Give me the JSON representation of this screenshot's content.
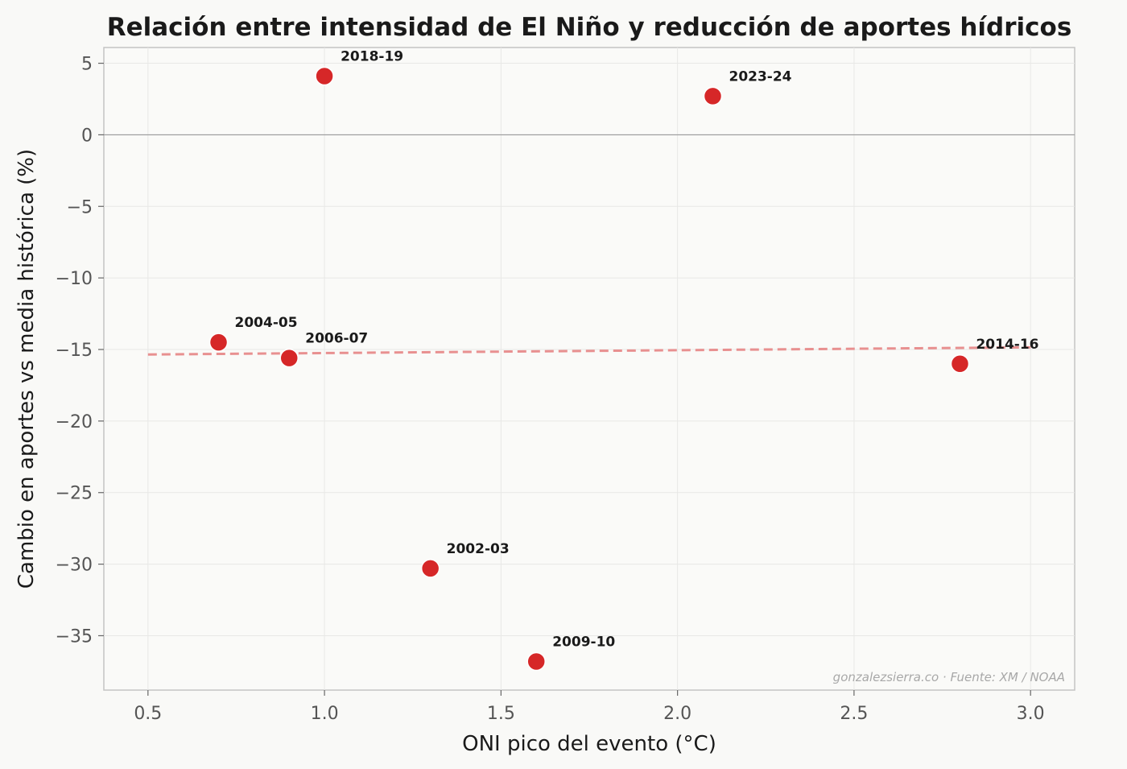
{
  "chart_data": {
    "type": "scatter",
    "title": "Relación entre intensidad de El Niño y reducción de aportes hídricos",
    "xlabel": "ONI pico del evento (°C)",
    "ylabel": "Cambio en aportes vs media histórica (%)",
    "xlim": [
      0.375,
      3.125
    ],
    "ylim": [
      -38.8,
      6.1
    ],
    "xticks": [
      0.5,
      1.0,
      1.5,
      2.0,
      2.5,
      3.0
    ],
    "xtick_labels": [
      "0.5",
      "1.0",
      "1.5",
      "2.0",
      "2.5",
      "3.0"
    ],
    "yticks": [
      5,
      0,
      -5,
      -10,
      -15,
      -20,
      -25,
      -30,
      -35
    ],
    "ytick_labels": [
      "5",
      "0",
      "−5",
      "−10",
      "−15",
      "−20",
      "−25",
      "−30",
      "−35"
    ],
    "grid": true,
    "zero_line": 0,
    "points": [
      {
        "label": "2002-03",
        "x": 1.3,
        "y": -30.3
      },
      {
        "label": "2004-05",
        "x": 0.7,
        "y": -14.5
      },
      {
        "label": "2006-07",
        "x": 0.9,
        "y": -15.6
      },
      {
        "label": "2009-10",
        "x": 1.6,
        "y": -36.8
      },
      {
        "label": "2014-16",
        "x": 2.8,
        "y": -16.0
      },
      {
        "label": "2018-19",
        "x": 1.0,
        "y": 4.1
      },
      {
        "label": "2023-24",
        "x": 2.1,
        "y": 2.7
      }
    ],
    "trendline": {
      "x": [
        0.5,
        3.0
      ],
      "y": [
        -15.35,
        -14.85
      ],
      "style": "dashed"
    },
    "colors": {
      "points": "#d62728",
      "trendline": "#e89090",
      "background": "#f9f9f7"
    },
    "credit": "gonzalezsierra.co · Fuente: XM / NOAA"
  }
}
